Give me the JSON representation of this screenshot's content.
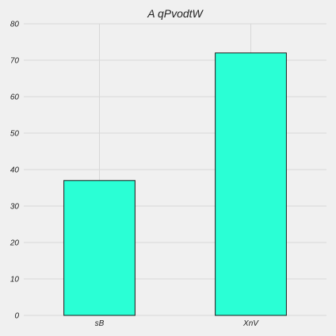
{
  "chart_data": {
    "type": "bar",
    "title": "A qPvodtW",
    "xlabel": "",
    "ylabel": "",
    "categories": [
      "sB",
      "XnV"
    ],
    "values": [
      37,
      72
    ],
    "ylim": [
      0,
      80
    ],
    "yticks": [
      0,
      10,
      20,
      30,
      40,
      50,
      60,
      70,
      80
    ],
    "grid": true,
    "bar_color": "#2affd5",
    "background": "#f0f0f0"
  }
}
